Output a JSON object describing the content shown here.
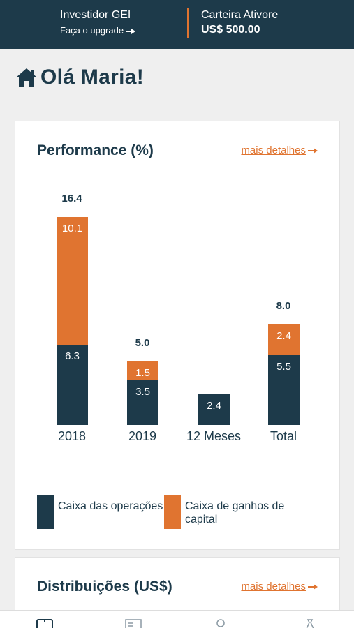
{
  "header": {
    "plan_label": "Investidor GEI",
    "upgrade_label": "Faça o upgrade",
    "wallet_label": "Carteira Ativore",
    "wallet_value": "US$ 500.00"
  },
  "greeting": "Olá Maria!",
  "icons": {
    "home": "home-icon",
    "arrow": "arrow-right-icon",
    "nav": [
      "wallet-icon",
      "statement-icon",
      "profile-icon",
      "transfer-icon"
    ]
  },
  "colors": {
    "primary": "#1d3a4a",
    "accent": "#e07430",
    "background": "#efefef"
  },
  "performance": {
    "title": "Performance (%)",
    "more_label": "mais detalhes"
  },
  "chart_data": {
    "type": "bar",
    "stacked": true,
    "categories": [
      "2018",
      "2019",
      "12 Meses",
      "Total"
    ],
    "series": [
      {
        "name": "Caixa das operações",
        "values": [
          6.3,
          3.5,
          2.4,
          5.5
        ],
        "color": "#1d3a4a"
      },
      {
        "name": "Caixa de ganhos de capital",
        "values": [
          10.1,
          1.5,
          null,
          2.4
        ],
        "color": "#e07430"
      }
    ],
    "totals": [
      16.4,
      5.0,
      null,
      8.0
    ],
    "segment_labels": {
      "operations": [
        "6.3",
        "3.5",
        "2.4",
        "5.5"
      ],
      "capital": [
        "10.1",
        "1.5",
        "",
        "2.4"
      ],
      "totals": [
        "16.4",
        "5.0",
        "",
        "8.0"
      ]
    },
    "legend_position": "bottom"
  },
  "legend": {
    "operations_label": "Caixa das operações",
    "capital_label": "Caixa de ganhos de capital"
  },
  "distributions": {
    "title": "Distribuições (US$)",
    "more_label": "mais detalhes"
  }
}
